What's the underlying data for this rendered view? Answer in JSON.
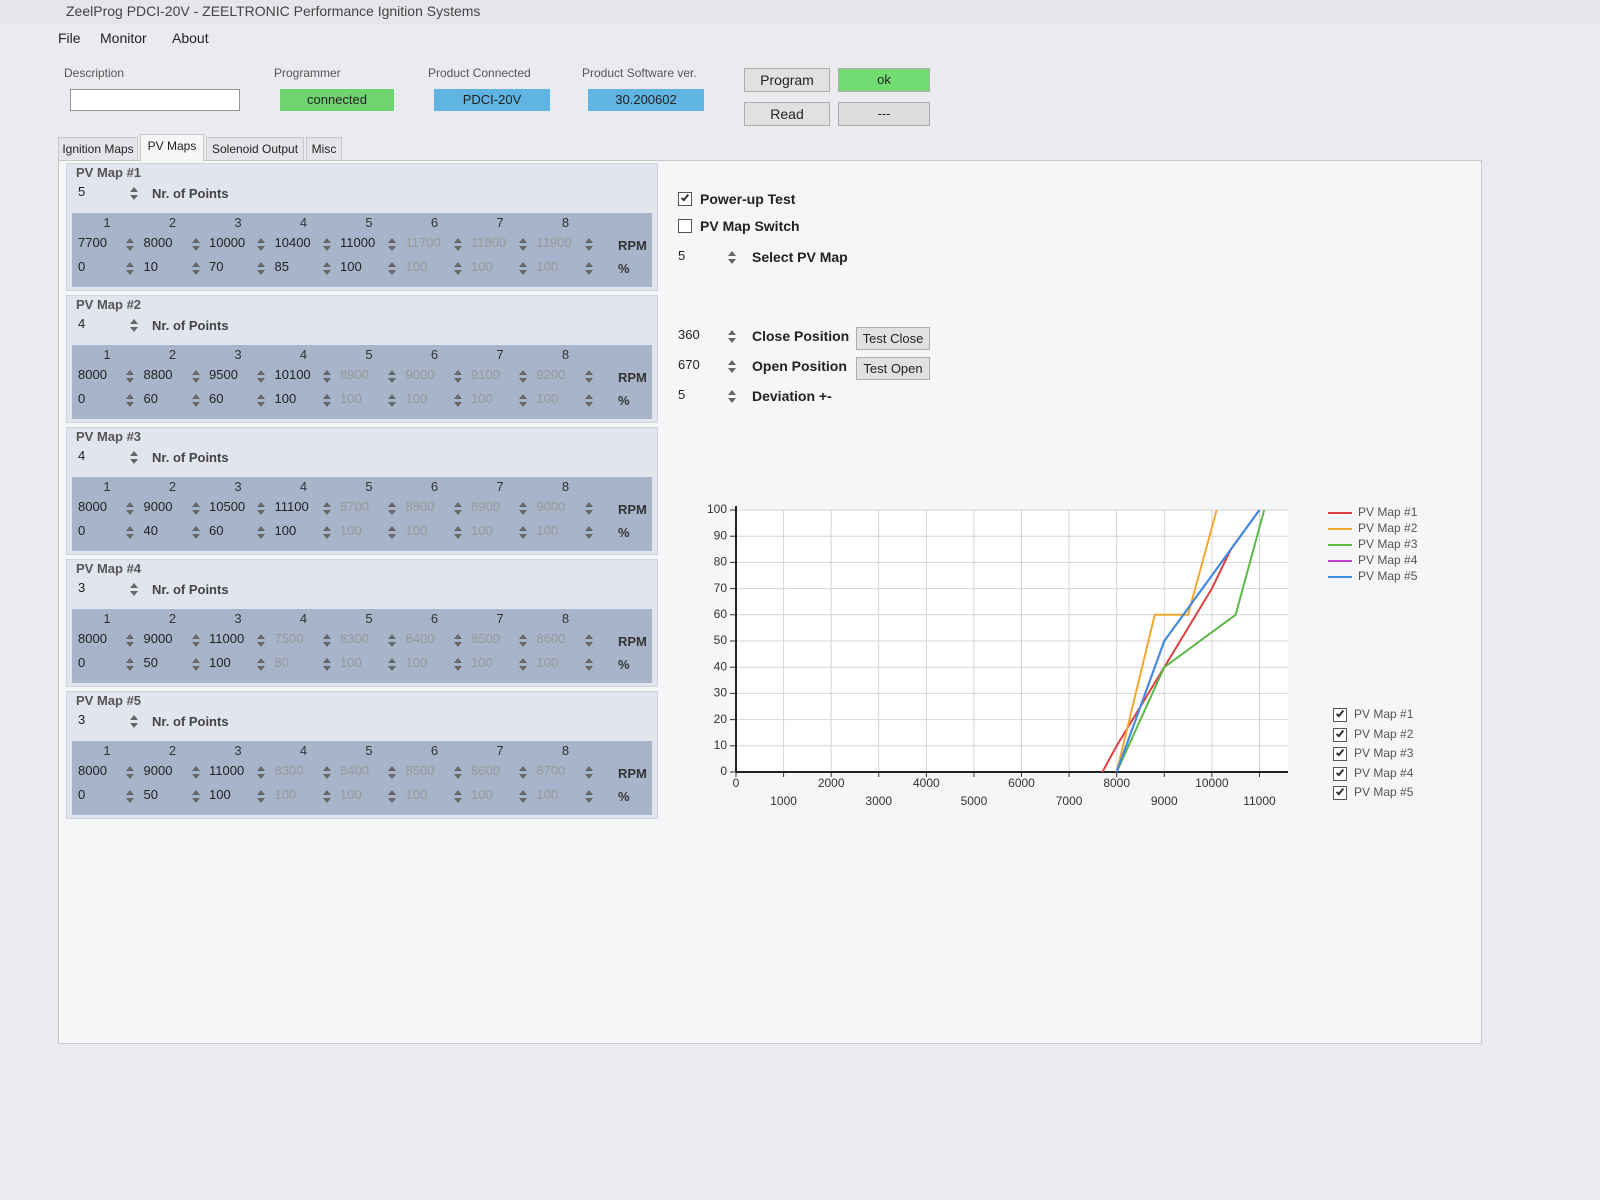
{
  "window_title": "ZeelProg PDCI-20V - ZEELTRONIC Performance Ignition Systems",
  "menu": [
    "File",
    "Monitor",
    "About"
  ],
  "header": {
    "description": {
      "label": "Description"
    },
    "programmer": {
      "label": "Programmer",
      "value": "connected"
    },
    "product": {
      "label": "Product Connected",
      "value": "PDCI-20V"
    },
    "software": {
      "label": "Product Software ver.",
      "value": "30.200602"
    },
    "buttons": [
      "Program",
      "Read"
    ],
    "status": [
      "ok",
      "---"
    ]
  },
  "tabs": [
    "Ignition Maps",
    "PV Maps",
    "Solenoid Output",
    "Misc"
  ],
  "active_tab": 1,
  "pv_maps": {
    "points_label": "Nr. of Points",
    "columns": [
      1,
      2,
      3,
      4,
      5,
      6,
      7,
      8
    ],
    "rpm_unit": "RPM",
    "pct_unit": "%",
    "maps": [
      {
        "title": "PV Map #1",
        "points": 5,
        "rpm": [
          7700,
          8000,
          10000,
          10400,
          11000,
          11700,
          11800,
          11900
        ],
        "pct": [
          0,
          10,
          70,
          85,
          100,
          100,
          100,
          100
        ]
      },
      {
        "title": "PV Map #2",
        "points": 4,
        "rpm": [
          8000,
          8800,
          9500,
          10100,
          8900,
          9000,
          9100,
          9200
        ],
        "pct": [
          0,
          60,
          60,
          100,
          100,
          100,
          100,
          100
        ]
      },
      {
        "title": "PV Map #3",
        "points": 4,
        "rpm": [
          8000,
          9000,
          10500,
          11100,
          8700,
          8800,
          8900,
          9000
        ],
        "pct": [
          0,
          40,
          60,
          100,
          100,
          100,
          100,
          100
        ]
      },
      {
        "title": "PV Map #4",
        "points": 3,
        "rpm": [
          8000,
          9000,
          11000,
          7500,
          8300,
          8400,
          8500,
          8600
        ],
        "pct": [
          0,
          50,
          100,
          80,
          100,
          100,
          100,
          100
        ]
      },
      {
        "title": "PV Map #5",
        "points": 3,
        "rpm": [
          8000,
          9000,
          11000,
          8300,
          8400,
          8500,
          8600,
          8700
        ],
        "pct": [
          0,
          50,
          100,
          100,
          100,
          100,
          100,
          100
        ]
      }
    ]
  },
  "settings": {
    "checkboxes": [
      {
        "label": "Power-up Test",
        "checked": true
      },
      {
        "label": "PV Map Switch",
        "checked": false
      }
    ],
    "select_map": {
      "value": 5,
      "label": "Select PV Map"
    },
    "close": {
      "value": 360,
      "label": "Close Position",
      "button": "Test Close"
    },
    "open": {
      "value": 670,
      "label": "Open Position",
      "button": "Test Open"
    },
    "deviation": {
      "value": 5,
      "label": "Deviation +-"
    }
  },
  "chart_data": {
    "type": "line",
    "xlim": [
      0,
      11600
    ],
    "ylim": [
      0,
      100
    ],
    "xticks": [
      0,
      1000,
      2000,
      3000,
      4000,
      5000,
      6000,
      7000,
      8000,
      9000,
      10000,
      11000
    ],
    "yticks": [
      0,
      10,
      20,
      30,
      40,
      50,
      60,
      70,
      80,
      90,
      100
    ],
    "grid": true,
    "legend": "right",
    "series": [
      {
        "name": "PV Map #1",
        "color": "#e04040",
        "x": [
          7700,
          8000,
          10000,
          10400,
          11000
        ],
        "values": [
          0,
          10,
          70,
          85,
          100
        ]
      },
      {
        "name": "PV Map #2",
        "color": "#f0a830",
        "x": [
          8000,
          8800,
          9500,
          10100
        ],
        "values": [
          0,
          60,
          60,
          100
        ]
      },
      {
        "name": "PV Map #3",
        "color": "#5cb848",
        "x": [
          8000,
          9000,
          10500,
          11100
        ],
        "values": [
          0,
          40,
          60,
          100
        ]
      },
      {
        "name": "PV Map #4",
        "color": "#c040c8",
        "x": [
          8000,
          9000,
          11000
        ],
        "values": [
          0,
          50,
          100
        ]
      },
      {
        "name": "PV Map #5",
        "color": "#3c8ee0",
        "x": [
          8000,
          9000,
          11000
        ],
        "values": [
          0,
          50,
          100
        ]
      }
    ]
  },
  "chart_toggles": [
    {
      "label": "PV Map #1",
      "checked": true
    },
    {
      "label": "PV Map #2",
      "checked": true
    },
    {
      "label": "PV Map #3",
      "checked": true
    },
    {
      "label": "PV Map #4",
      "checked": true
    },
    {
      "label": "PV Map #5",
      "checked": true
    }
  ]
}
